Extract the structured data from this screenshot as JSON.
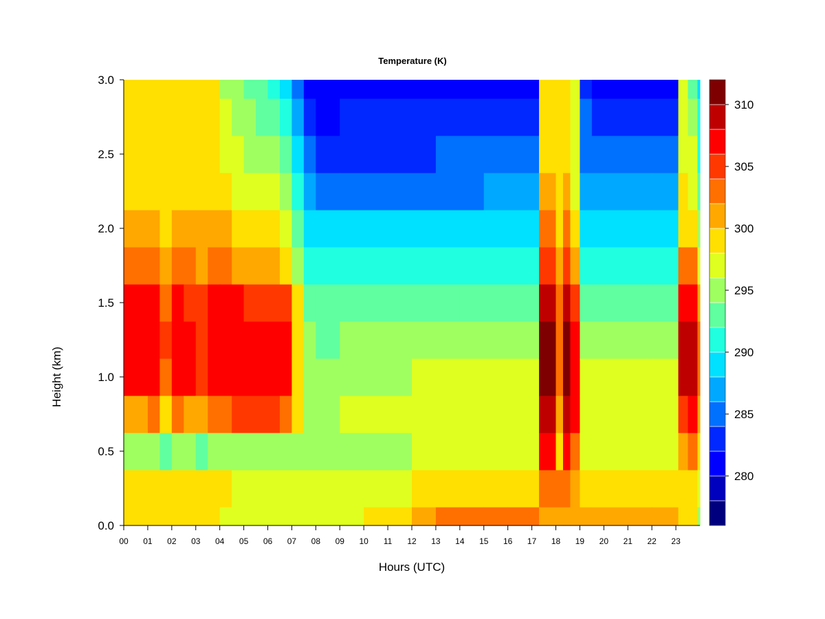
{
  "chart_data": {
    "type": "heatmap",
    "title": "Temperature (K)",
    "xlabel": "Hours (UTC)",
    "ylabel": "Height (km)",
    "x_tick_labels": [
      "00",
      "01",
      "02",
      "03",
      "04",
      "05",
      "06",
      "07",
      "08",
      "09",
      "10",
      "11",
      "12",
      "13",
      "14",
      "15",
      "16",
      "17",
      "18",
      "19",
      "20",
      "21",
      "22",
      "23"
    ],
    "y_tick_labels": [
      "0.0",
      "0.5",
      "1.0",
      "1.5",
      "2.0",
      "2.5",
      "3.0"
    ],
    "xlim": [
      0,
      24
    ],
    "ylim": [
      0,
      3.0
    ],
    "colorbar": {
      "tick_labels": [
        "280",
        "285",
        "290",
        "295",
        "300",
        "305",
        "310"
      ],
      "levels": [
        276,
        278,
        280,
        282,
        284,
        286,
        288,
        290,
        292,
        294,
        296,
        298,
        300,
        302,
        304,
        306,
        308,
        310,
        312
      ],
      "colors": [
        "#00007f",
        "#0000bf",
        "#0000ff",
        "#0028ff",
        "#0070ff",
        "#00a8ff",
        "#00e0ff",
        "#20ffdf",
        "#60ff9f",
        "#9fff60",
        "#dfff20",
        "#ffe000",
        "#ffa800",
        "#ff7000",
        "#ff3800",
        "#ff0000",
        "#bf0000",
        "#7f0000"
      ]
    },
    "x_hours": [
      0.0,
      0.5,
      1.0,
      1.5,
      2.0,
      2.5,
      3.0,
      3.5,
      4.0,
      4.5,
      5.0,
      5.5,
      6.0,
      6.5,
      7.0,
      7.5,
      8.0,
      9.0,
      10.0,
      11.0,
      12.0,
      13.0,
      14.0,
      15.0,
      16.0,
      17.0,
      17.3,
      17.6,
      18.0,
      18.3,
      18.6,
      19.0,
      19.5,
      20.0,
      21.0,
      22.0,
      22.9,
      23.1,
      23.5,
      23.9
    ],
    "heights_km": [
      0.0,
      0.25,
      0.5,
      0.75,
      1.0,
      1.25,
      1.5,
      1.75,
      2.0,
      2.25,
      2.5,
      2.75,
      3.0
    ],
    "temperature_profiles": [
      {
        "hour": 0.0,
        "t": [
          298,
          299,
          294,
          301,
          306,
          307,
          306,
          302,
          300,
          299,
          299,
          299,
          299
        ]
      },
      {
        "hour": 0.5,
        "t": [
          298,
          299,
          294,
          301,
          306,
          307,
          306,
          302,
          300,
          299,
          299,
          299,
          299
        ]
      },
      {
        "hour": 1.0,
        "t": [
          298,
          299,
          294,
          302,
          307,
          307,
          306,
          302,
          300,
          299,
          298,
          298,
          298
        ]
      },
      {
        "hour": 1.5,
        "t": [
          298,
          298,
          293,
          299,
          303,
          304,
          303,
          301,
          299,
          298,
          298,
          298,
          298
        ]
      },
      {
        "hour": 2.0,
        "t": [
          298,
          299,
          294,
          302,
          307,
          307,
          306,
          302,
          300,
          299,
          299,
          299,
          299
        ]
      },
      {
        "hour": 2.5,
        "t": [
          298,
          299,
          294,
          301,
          306,
          306,
          305,
          302,
          300,
          299,
          299,
          299,
          299
        ]
      },
      {
        "hour": 3.0,
        "t": [
          298,
          298,
          293,
          300,
          304,
          305,
          304,
          301,
          300,
          299,
          299,
          299,
          299
        ]
      },
      {
        "hour": 3.5,
        "t": [
          298,
          299,
          294,
          302,
          306,
          307,
          306,
          302,
          300,
          299,
          299,
          298,
          298
        ]
      },
      {
        "hour": 4.0,
        "t": [
          297,
          298,
          294,
          303,
          307,
          307,
          306,
          302,
          300,
          298,
          297,
          296,
          295
        ]
      },
      {
        "hour": 4.5,
        "t": [
          297,
          297,
          294,
          304,
          307,
          307,
          306,
          301,
          299,
          297,
          296,
          295,
          294
        ]
      },
      {
        "hour": 5.0,
        "t": [
          297,
          297,
          294,
          304,
          307,
          307,
          305,
          301,
          298,
          296,
          295,
          294,
          293
        ]
      },
      {
        "hour": 5.5,
        "t": [
          297,
          297,
          294,
          304,
          307,
          307,
          305,
          300,
          298,
          296,
          294,
          293,
          292
        ]
      },
      {
        "hour": 6.0,
        "t": [
          296,
          297,
          294,
          304,
          307,
          307,
          305,
          300,
          298,
          296,
          294,
          292,
          291
        ]
      },
      {
        "hour": 6.5,
        "t": [
          296,
          296,
          294,
          303,
          306,
          306,
          304,
          299,
          296,
          294,
          292,
          290,
          289
        ]
      },
      {
        "hour": 7.0,
        "t": [
          296,
          296,
          294,
          298,
          299,
          299,
          298,
          295,
          292,
          290,
          288,
          286,
          285
        ]
      },
      {
        "hour": 7.5,
        "t": [
          296,
          296,
          294,
          295,
          295,
          294,
          293,
          291,
          289,
          286,
          284,
          282,
          281
        ]
      },
      {
        "hour": 8.0,
        "t": [
          296,
          296,
          294,
          295,
          294,
          293,
          292,
          290,
          288,
          285,
          283,
          281,
          280
        ]
      },
      {
        "hour": 9.0,
        "t": [
          297,
          296,
          295,
          296,
          295,
          294,
          292,
          290,
          288,
          285,
          283,
          282,
          280
        ]
      },
      {
        "hour": 10.0,
        "t": [
          298,
          296,
          295,
          296,
          295,
          294,
          292,
          290,
          288,
          285,
          283,
          282,
          280
        ]
      },
      {
        "hour": 11.0,
        "t": [
          299,
          297,
          295,
          296,
          295,
          294,
          292,
          290,
          288,
          285,
          283,
          282,
          280
        ]
      },
      {
        "hour": 12.0,
        "t": [
          301,
          298,
          296,
          297,
          296,
          294,
          292,
          290,
          288,
          285,
          283,
          282,
          280
        ]
      },
      {
        "hour": 13.0,
        "t": [
          302,
          298,
          296,
          297,
          296,
          294,
          292,
          290,
          288,
          285,
          284,
          282,
          280
        ]
      },
      {
        "hour": 14.0,
        "t": [
          302,
          298,
          296,
          297,
          296,
          294,
          292,
          290,
          288,
          285,
          284,
          282,
          280
        ]
      },
      {
        "hour": 15.0,
        "t": [
          302,
          298,
          296,
          297,
          296,
          295,
          293,
          291,
          288,
          286,
          284,
          282,
          280
        ]
      },
      {
        "hour": 16.0,
        "t": [
          302,
          299,
          297,
          297,
          296,
          295,
          293,
          291,
          288,
          286,
          284,
          282,
          280
        ]
      },
      {
        "hour": 17.0,
        "t": [
          302,
          299,
          297,
          297,
          296,
          295,
          293,
          291,
          288,
          286,
          284,
          282,
          280
        ]
      },
      {
        "hour": 17.3,
        "t": [
          300,
          302,
          306,
          309,
          310,
          310,
          309,
          304,
          302,
          300,
          299,
          298,
          298
        ]
      },
      {
        "hour": 17.6,
        "t": [
          300,
          302,
          306,
          309,
          310,
          310,
          309,
          305,
          302,
          300,
          299,
          299,
          299
        ]
      },
      {
        "hour": 18.0,
        "t": [
          301,
          302,
          299,
          301,
          303,
          303,
          302,
          300,
          299,
          298,
          298,
          298,
          298
        ]
      },
      {
        "hour": 18.3,
        "t": [
          301,
          302,
          306,
          309,
          310,
          310,
          309,
          304,
          302,
          300,
          299,
          299,
          299
        ]
      },
      {
        "hour": 18.6,
        "t": [
          300,
          300,
          303,
          306,
          307,
          306,
          304,
          300,
          298,
          297,
          296,
          296,
          296
        ]
      },
      {
        "hour": 19.0,
        "t": [
          300,
          299,
          297,
          297,
          296,
          295,
          293,
          291,
          289,
          287,
          285,
          284,
          283
        ]
      },
      {
        "hour": 19.5,
        "t": [
          300,
          299,
          297,
          297,
          296,
          295,
          293,
          291,
          288,
          286,
          284,
          282,
          280
        ]
      },
      {
        "hour": 20.0,
        "t": [
          301,
          299,
          297,
          297,
          296,
          295,
          293,
          291,
          288,
          286,
          284,
          282,
          280
        ]
      },
      {
        "hour": 21.0,
        "t": [
          301,
          299,
          297,
          297,
          296,
          295,
          293,
          291,
          288,
          286,
          284,
          282,
          280
        ]
      },
      {
        "hour": 22.0,
        "t": [
          300,
          298,
          297,
          297,
          296,
          295,
          293,
          291,
          288,
          286,
          284,
          282,
          280
        ]
      },
      {
        "hour": 22.9,
        "t": [
          300,
          298,
          297,
          297,
          296,
          295,
          293,
          291,
          288,
          286,
          284,
          282,
          281
        ]
      },
      {
        "hour": 23.1,
        "t": [
          298,
          298,
          300,
          305,
          309,
          309,
          307,
          302,
          299,
          298,
          297,
          297,
          297
        ]
      },
      {
        "hour": 23.5,
        "t": [
          298,
          299,
          303,
          307,
          309,
          309,
          307,
          302,
          299,
          297,
          296,
          294,
          293
        ]
      },
      {
        "hour": 23.9,
        "t": [
          295,
          296,
          298,
          301,
          303,
          302,
          300,
          297,
          294,
          292,
          291,
          290,
          289
        ]
      }
    ]
  }
}
